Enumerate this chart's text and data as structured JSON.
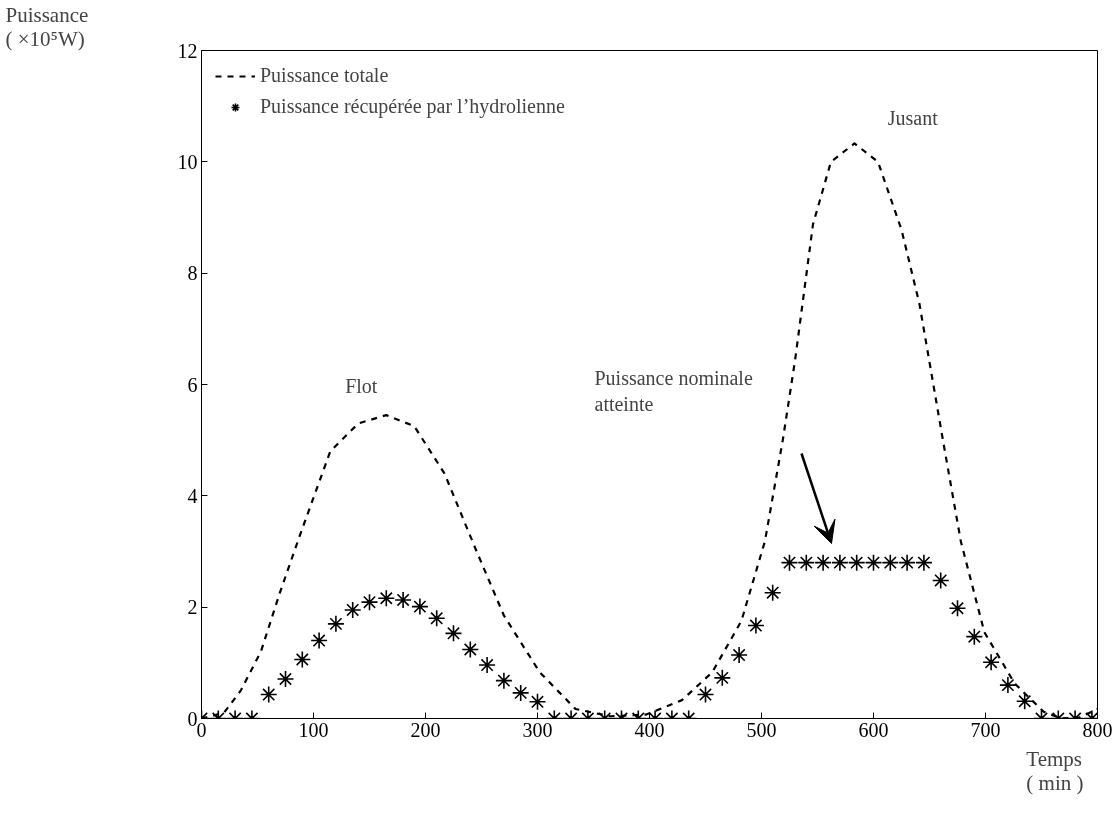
{
  "chart_data": {
    "type": "line",
    "xlabel": "Temps\n( min )",
    "ylabel": "Puissance\n( ×10⁵W)",
    "xlim": [
      0,
      800
    ],
    "ylim": [
      0,
      12
    ],
    "xticks": [
      0,
      100,
      200,
      300,
      400,
      500,
      600,
      700,
      800
    ],
    "yticks": [
      0,
      2,
      4,
      6,
      8,
      10,
      12
    ],
    "grid": false,
    "legend": "top left",
    "series": [
      {
        "name": "Puissance totale",
        "type": "line",
        "line_style": "dashed",
        "marker": "none",
        "color": "#000000",
        "x": [
          0,
          20,
          35,
          53,
          70,
          88,
          115,
          140,
          165,
          190,
          217,
          244,
          270,
          302,
          334,
          365,
          397,
          429,
          456,
          482,
          503,
          519,
          530,
          546,
          562,
          583,
          604,
          625,
          641,
          662,
          678,
          699,
          726,
          752,
          768,
          784,
          800
        ],
        "values": [
          0,
          0.1,
          0.5,
          1.2,
          2.26,
          3.3,
          4.8,
          5.3,
          5.45,
          5.25,
          4.4,
          3.08,
          1.85,
          0.83,
          0.17,
          0.04,
          0.07,
          0.33,
          0.83,
          1.75,
          3.18,
          5.0,
          6.44,
          8.88,
          10.0,
          10.33,
          10.0,
          8.78,
          7.45,
          5.0,
          3.18,
          1.55,
          0.63,
          0.12,
          0,
          0.02,
          0.17
        ]
      },
      {
        "name": "Puissance récupérée par l’hydrolienne",
        "type": "scatter",
        "marker": "cross",
        "color": "#000000",
        "x": [
          0,
          15,
          30,
          45,
          60,
          75,
          90,
          105,
          120,
          135,
          150,
          165,
          180,
          195,
          210,
          225,
          240,
          255,
          270,
          285,
          300,
          315,
          330,
          345,
          360,
          375,
          390,
          405,
          420,
          435,
          450,
          465,
          480,
          495,
          510,
          525,
          540,
          555,
          570,
          585,
          600,
          615,
          630,
          645,
          660,
          675,
          690,
          705,
          720,
          735,
          750,
          765,
          780,
          795
        ],
        "values": [
          0,
          0,
          0,
          0,
          0.43,
          0.71,
          1.06,
          1.4,
          1.7,
          1.95,
          2.09,
          2.16,
          2.13,
          2.01,
          1.8,
          1.53,
          1.24,
          0.96,
          0.68,
          0.46,
          0.3,
          0,
          0,
          0,
          0,
          0,
          0,
          0,
          0,
          0,
          0.43,
          0.73,
          1.14,
          1.67,
          2.26,
          2.8,
          2.8,
          2.8,
          2.8,
          2.8,
          2.8,
          2.8,
          2.8,
          2.8,
          2.48,
          1.98,
          1.47,
          1.01,
          0.6,
          0.31,
          0,
          0,
          0,
          0
        ]
      }
    ],
    "annotations": [
      {
        "text": "Flot",
        "x": 165,
        "y": 5.45
      },
      {
        "text": "Jusant",
        "x": 585,
        "y": 10.33
      },
      "Puissance nominale\natteinte"
    ]
  }
}
